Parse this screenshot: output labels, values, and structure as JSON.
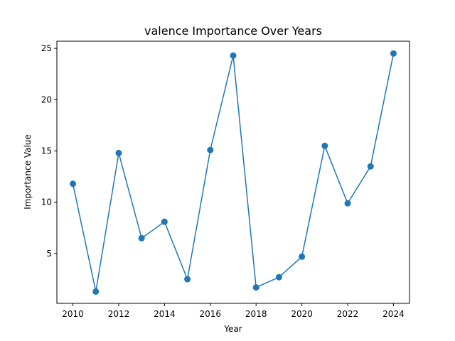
{
  "chart_data": {
    "type": "line",
    "title": "valence Importance Over Years",
    "xlabel": "Year",
    "ylabel": "Importance Value",
    "x": [
      2010,
      2011,
      2012,
      2013,
      2014,
      2015,
      2016,
      2017,
      2018,
      2019,
      2020,
      2021,
      2022,
      2023,
      2024
    ],
    "series": [
      {
        "values": [
          11.8,
          1.3,
          14.8,
          6.5,
          8.1,
          2.5,
          15.1,
          24.3,
          1.7,
          2.7,
          4.7,
          15.5,
          9.9,
          13.5,
          24.5
        ],
        "color": "#1f77b4",
        "marker": "circle"
      }
    ],
    "xlim": [
      2009.3,
      2024.7
    ],
    "ylim": [
      0.15,
      25.7
    ],
    "xticks": [
      2010,
      2012,
      2014,
      2016,
      2018,
      2020,
      2022,
      2024
    ],
    "yticks": [
      5,
      10,
      15,
      20,
      25
    ],
    "grid": false,
    "legend": "none"
  }
}
